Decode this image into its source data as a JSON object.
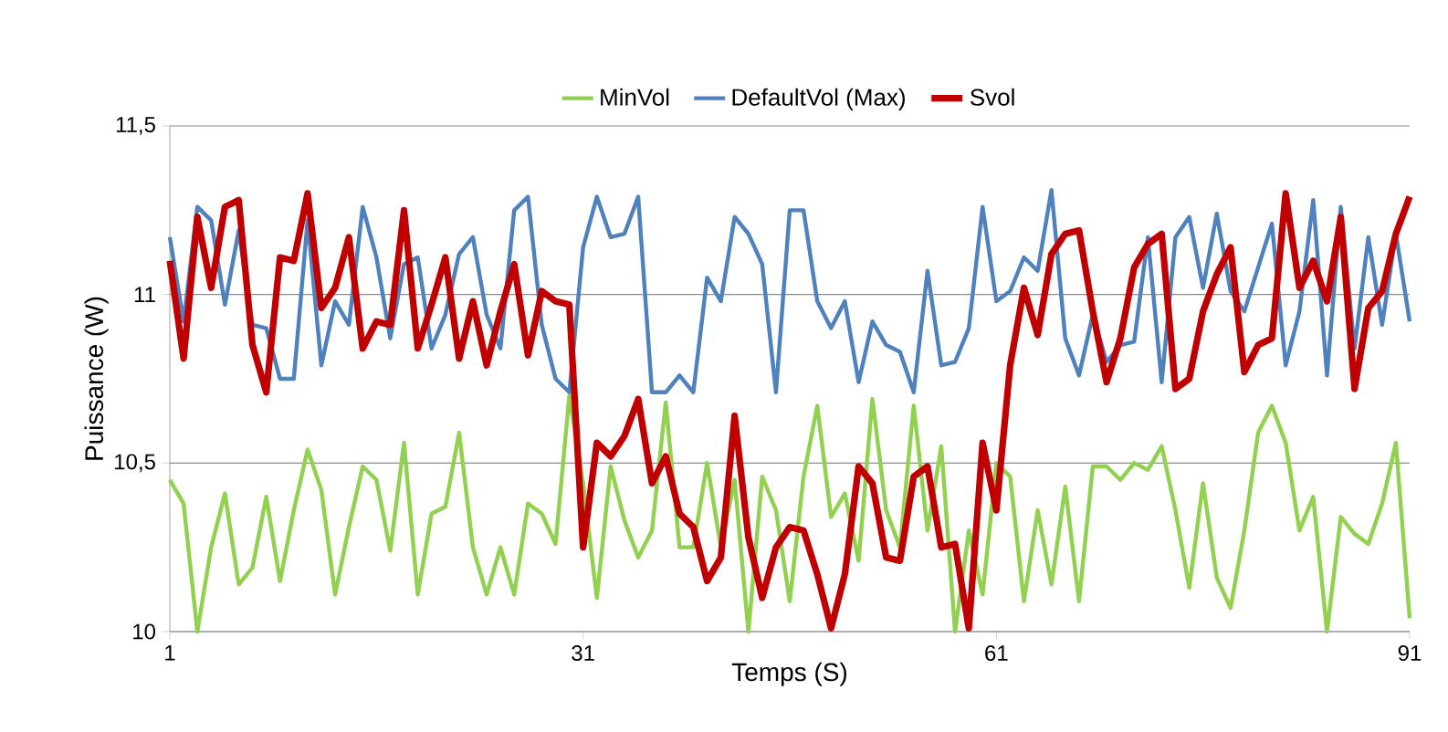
{
  "chart_data": {
    "type": "line",
    "xlabel": "Temps (S)",
    "ylabel": "Puissance (W)",
    "x": [
      1,
      2,
      3,
      4,
      5,
      6,
      7,
      8,
      9,
      10,
      11,
      12,
      13,
      14,
      15,
      16,
      17,
      18,
      19,
      20,
      21,
      22,
      23,
      24,
      25,
      26,
      27,
      28,
      29,
      30,
      31,
      32,
      33,
      34,
      35,
      36,
      37,
      38,
      39,
      40,
      41,
      42,
      43,
      44,
      45,
      46,
      47,
      48,
      49,
      50,
      51,
      52,
      53,
      54,
      55,
      56,
      57,
      58,
      59,
      60,
      61,
      62,
      63,
      64,
      65,
      66,
      67,
      68,
      69,
      70,
      71,
      72,
      73,
      74,
      75,
      76,
      77,
      78,
      79,
      80,
      81,
      82,
      83,
      84,
      85,
      86,
      87,
      88,
      89,
      90,
      91
    ],
    "xlim": [
      1,
      91
    ],
    "xticks": [
      1,
      31,
      61,
      91
    ],
    "ylim": [
      10,
      11.5
    ],
    "yticks": [
      {
        "value": 10,
        "label": "10"
      },
      {
        "value": 10.5,
        "label": "10,5"
      },
      {
        "value": 11,
        "label": "11"
      },
      {
        "value": 11.5,
        "label": "11,5"
      }
    ],
    "grid": "y",
    "legend": "top",
    "marker": "none",
    "line_style": "solid",
    "series": [
      {
        "name": "MinVol",
        "color": "#92d050",
        "values": [
          10.45,
          10.38,
          10.0,
          10.25,
          10.41,
          10.14,
          10.19,
          10.4,
          10.15,
          10.36,
          10.54,
          10.42,
          10.11,
          10.31,
          10.49,
          10.45,
          10.24,
          10.56,
          10.11,
          10.35,
          10.37,
          10.59,
          10.25,
          10.11,
          10.25,
          10.11,
          10.38,
          10.35,
          10.26,
          10.7,
          10.44,
          10.1,
          10.49,
          10.33,
          10.22,
          10.3,
          10.68,
          10.25,
          10.25,
          10.5,
          10.25,
          10.45,
          10.0,
          10.46,
          10.36,
          10.09,
          10.46,
          10.67,
          10.34,
          10.41,
          10.21,
          10.69,
          10.36,
          10.25,
          10.67,
          10.3,
          10.55,
          10.0,
          10.3,
          10.11,
          10.5,
          10.46,
          10.09,
          10.36,
          10.14,
          10.43,
          10.09,
          10.49,
          10.49,
          10.45,
          10.5,
          10.48,
          10.55,
          10.36,
          10.13,
          10.44,
          10.16,
          10.07,
          10.3,
          10.59,
          10.67,
          10.56,
          10.3,
          10.4,
          10.0,
          10.34,
          10.29,
          10.26,
          10.38,
          10.56,
          10.04
        ]
      },
      {
        "name": "DefaultVol (Max)",
        "color": "#4f81bd",
        "values": [
          11.17,
          10.92,
          11.26,
          11.22,
          10.97,
          11.19,
          10.91,
          10.9,
          10.75,
          10.75,
          11.22,
          10.79,
          10.98,
          10.91,
          11.26,
          11.11,
          10.87,
          11.09,
          11.11,
          10.84,
          10.94,
          11.12,
          11.17,
          10.94,
          10.84,
          11.25,
          11.29,
          10.91,
          10.75,
          10.71,
          11.14,
          11.29,
          11.17,
          11.18,
          11.29,
          10.71,
          10.71,
          10.76,
          10.71,
          11.05,
          10.98,
          11.23,
          11.18,
          11.09,
          10.71,
          11.25,
          11.25,
          10.98,
          10.9,
          10.98,
          10.74,
          10.92,
          10.85,
          10.83,
          10.71,
          11.07,
          10.79,
          10.8,
          10.9,
          11.26,
          10.98,
          11.01,
          11.11,
          11.07,
          11.31,
          10.87,
          10.76,
          10.94,
          10.8,
          10.85,
          10.86,
          11.17,
          10.74,
          11.17,
          11.23,
          11.02,
          11.24,
          11.01,
          10.95,
          11.08,
          11.21,
          10.79,
          10.95,
          11.28,
          10.76,
          11.26,
          10.84,
          11.17,
          10.91,
          11.18,
          10.92
        ]
      },
      {
        "name": "Svol",
        "color": "#c00000",
        "values": [
          11.1,
          10.81,
          11.23,
          11.02,
          11.26,
          11.28,
          10.85,
          10.71,
          11.11,
          11.1,
          11.3,
          10.96,
          11.02,
          11.17,
          10.84,
          10.92,
          10.91,
          11.25,
          10.84,
          10.97,
          11.11,
          10.81,
          10.98,
          10.79,
          10.95,
          11.09,
          10.82,
          11.01,
          10.98,
          10.97,
          10.25,
          10.56,
          10.52,
          10.58,
          10.69,
          10.44,
          10.52,
          10.35,
          10.31,
          10.15,
          10.22,
          10.64,
          10.28,
          10.1,
          10.25,
          10.31,
          10.3,
          10.17,
          10.01,
          10.17,
          10.49,
          10.44,
          10.22,
          10.21,
          10.46,
          10.49,
          10.25,
          10.26,
          10.01,
          10.56,
          10.36,
          10.79,
          11.02,
          10.88,
          11.12,
          11.18,
          11.19,
          10.95,
          10.74,
          10.87,
          11.08,
          11.15,
          11.18,
          10.72,
          10.75,
          10.95,
          11.06,
          11.14,
          10.77,
          10.85,
          10.87,
          11.3,
          11.02,
          11.1,
          10.98,
          11.23,
          10.72,
          10.96,
          11.01,
          11.18,
          11.29
        ]
      }
    ]
  }
}
